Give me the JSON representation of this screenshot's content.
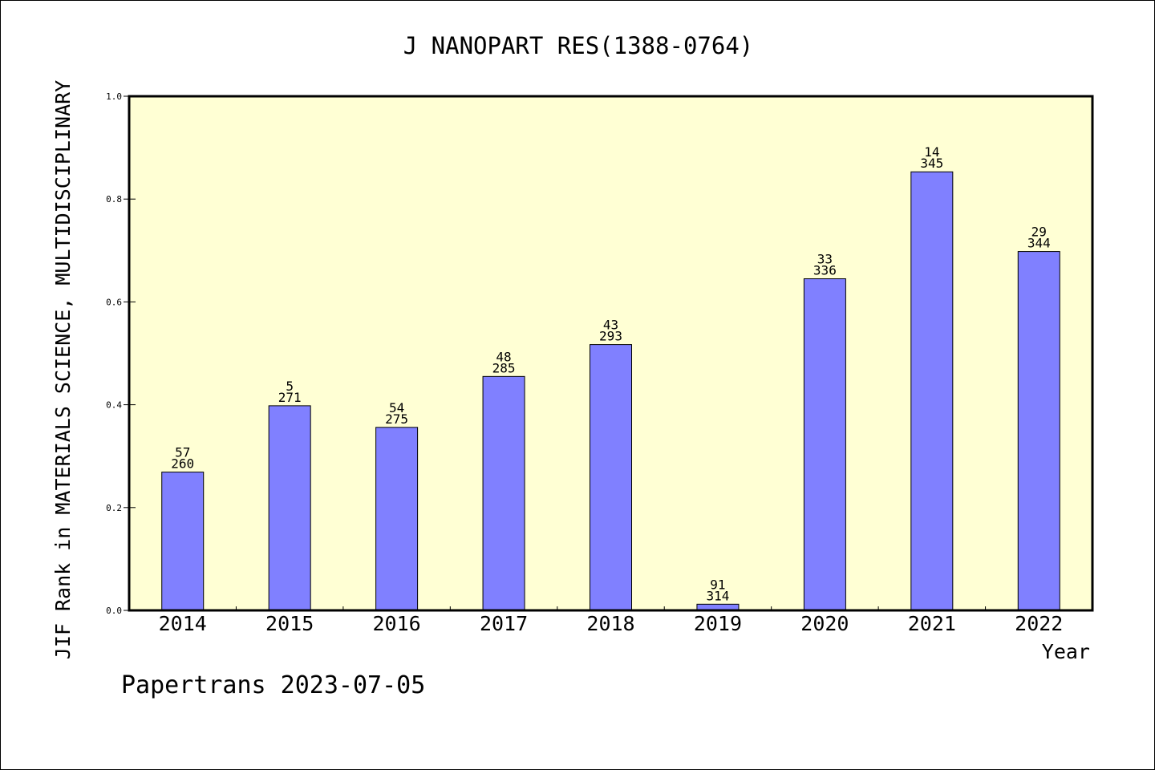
{
  "chart_data": {
    "type": "bar",
    "title": "J NANOPART RES(1388-0764)",
    "xlabel": "Year",
    "ylabel": "JIF Rank in MATERIALS SCIENCE, MULTIDISCIPLINARY",
    "footer": "Papertrans 2023-07-05",
    "ylim": [
      0,
      1.0
    ],
    "yticks": [
      "0.0",
      "0.2",
      "0.4",
      "0.6",
      "0.8",
      "1.0"
    ],
    "categories": [
      "2014",
      "2015",
      "2016",
      "2017",
      "2018",
      "2019",
      "2020",
      "2021",
      "2022"
    ],
    "values": [
      0.269,
      0.398,
      0.356,
      0.455,
      0.517,
      0.012,
      0.645,
      0.853,
      0.698
    ],
    "ranks": [
      "57",
      "5",
      "54",
      "48",
      "43",
      "91",
      "33",
      "14",
      "29"
    ],
    "totals": [
      "260",
      "271",
      "275",
      "285",
      "293",
      "314",
      "336",
      "345",
      "344"
    ],
    "grid": false,
    "colors": {
      "plot_bg": "#ffffd4",
      "bar": "#8080ff",
      "axis": "#000000"
    }
  }
}
